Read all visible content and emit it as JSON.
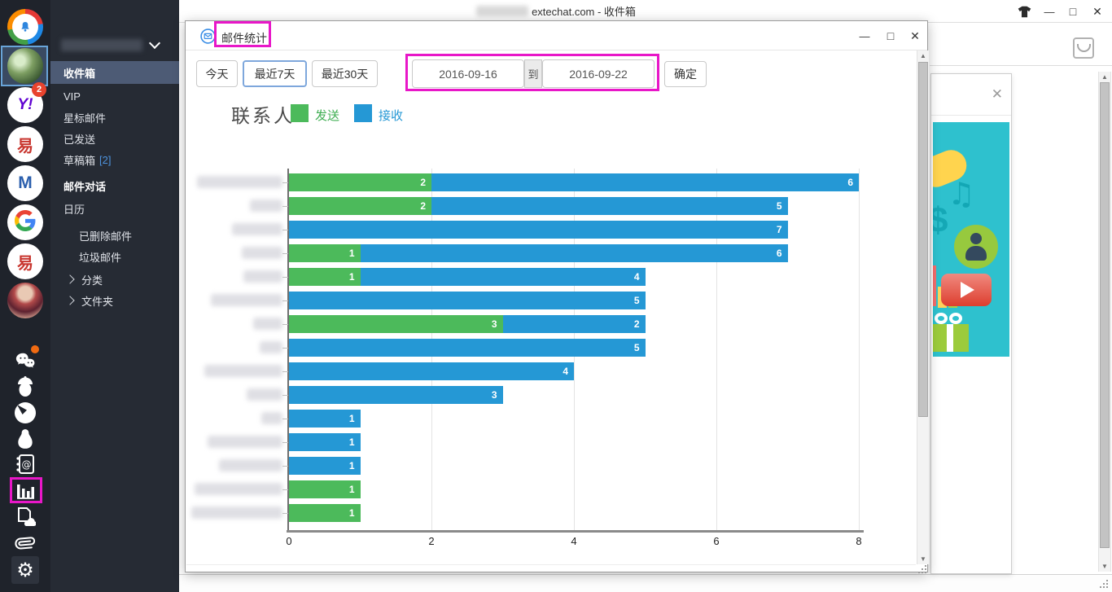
{
  "titlebar": {
    "title_visible": "extechat.com - 收件箱",
    "title_prefix_redacted": true,
    "icons": [
      "skin-tshirt-icon",
      "minimize-icon",
      "maximize-icon",
      "close-icon"
    ],
    "minimize": "—",
    "maximize": "□",
    "close": "✕"
  },
  "accounts_rail": {
    "accounts": [
      {
        "id": "app-logo",
        "icon": "colorful-ring-bell-icon"
      },
      {
        "id": "plant-avatar",
        "icon": "photo-avatar",
        "selected": true
      },
      {
        "id": "yahoo",
        "label": "Y!",
        "badge": "2",
        "label_color": "#5f01d1"
      },
      {
        "id": "netease-1",
        "label": "易",
        "label_color": "#c8352e"
      },
      {
        "id": "m-mail",
        "label": "M",
        "label_color": "#2b5fad"
      },
      {
        "id": "google",
        "icon": "google-g-icon"
      },
      {
        "id": "netease-2",
        "label": "易",
        "label_color": "#c8352e"
      },
      {
        "id": "berries-avatar",
        "icon": "photo-avatar"
      }
    ],
    "tools": [
      "wechat-icon",
      "acorn-icon",
      "dashboard-icon",
      "penguin-icon",
      "contacts-book-icon",
      "stats-bars-icon",
      "doc-cloud-icon",
      "paperclip-icon",
      "settings-gear-icon"
    ],
    "wechat_has_orange_dot": true
  },
  "sidebar": {
    "account_name_redacted": true,
    "items": [
      {
        "id": "inbox",
        "label": "收件箱",
        "active": true,
        "bold": true
      },
      {
        "id": "vip",
        "label": "VIP"
      },
      {
        "id": "starred",
        "label": "星标邮件"
      },
      {
        "id": "sent",
        "label": "已发送"
      },
      {
        "id": "drafts",
        "label": "草稿箱",
        "count": "[2]"
      },
      {
        "id": "conversations",
        "label": "邮件对话",
        "bold": true
      },
      {
        "id": "calendar",
        "label": "日历"
      },
      {
        "id": "deleted",
        "label": "已删除邮件",
        "indent": true
      },
      {
        "id": "junk",
        "label": "垃圾邮件",
        "indent": true
      },
      {
        "id": "categories",
        "label": "分类",
        "expandable": true
      },
      {
        "id": "folders",
        "label": "文件夹",
        "expandable": true
      }
    ]
  },
  "dialog": {
    "header_icon": "mail-stats-envelope-icon",
    "title": "邮件统计",
    "range_buttons": [
      {
        "label": "今天"
      },
      {
        "label": "最近7天",
        "active": true
      },
      {
        "label": "最近30天"
      }
    ],
    "date_from": "2016-09-16",
    "date_separator": "到",
    "date_to": "2016-09-22",
    "confirm_label": "确定",
    "controls": {
      "minimize": "—",
      "maximize": "□",
      "close": "✕"
    }
  },
  "chart_data": {
    "type": "bar",
    "orientation": "horizontal",
    "stacked": true,
    "title": "联系人",
    "legend": [
      {
        "name": "发送",
        "color": "#4cba5b"
      },
      {
        "name": "接收",
        "color": "#2598d5"
      }
    ],
    "legend_position": "top",
    "grid": true,
    "xlim": [
      0,
      8
    ],
    "x_ticks": [
      0,
      2,
      4,
      6,
      8
    ],
    "categories_redacted": true,
    "row_label_blur_widths": [
      105,
      40,
      62,
      50,
      48,
      88,
      36,
      28,
      96,
      44,
      26,
      92,
      78,
      108,
      112
    ],
    "series": [
      {
        "name": "发送",
        "values": [
          2,
          2,
          0,
          1,
          1,
          0,
          3,
          0,
          0,
          0,
          0,
          0,
          0,
          1,
          1
        ]
      },
      {
        "name": "接收",
        "values": [
          6,
          5,
          7,
          6,
          4,
          5,
          2,
          5,
          4,
          3,
          1,
          1,
          1,
          0,
          0
        ]
      }
    ]
  },
  "right_panel": {
    "close": "✕",
    "ad_icons": [
      "yellow-blob",
      "music-notes-icon",
      "dollar-icon",
      "person-circle-icon",
      "play-button-icon",
      "mini-bars-icon",
      "gift-box-icon"
    ],
    "ad_bg_color": "#2ec1ce"
  },
  "annotations": {
    "color": "#e817c8",
    "targets": [
      "dialog-title",
      "date-range-group",
      "stats-bars-tool"
    ]
  }
}
